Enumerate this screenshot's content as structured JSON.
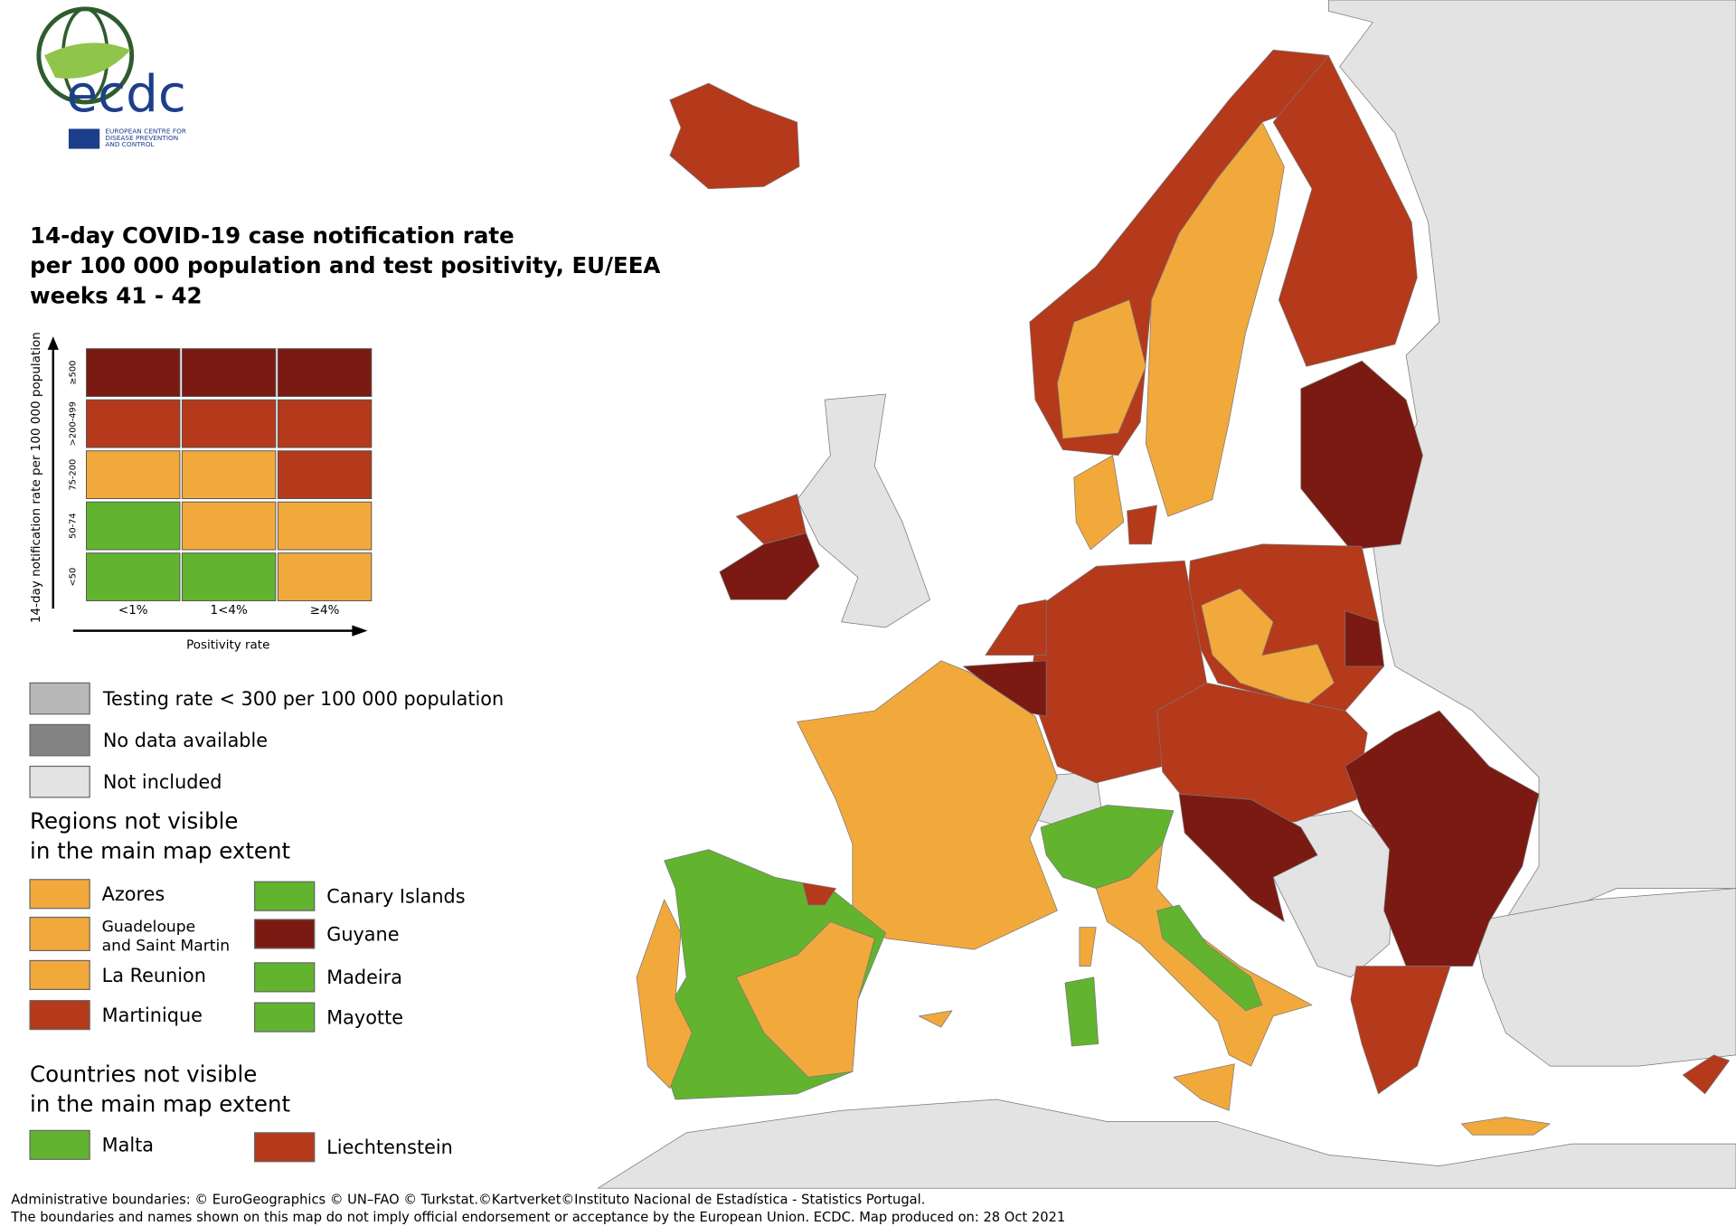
{
  "logo": {
    "name": "ecdc",
    "org": [
      "EUROPEAN CENTRE FOR",
      "DISEASE PREVENTION",
      "AND CONTROL"
    ]
  },
  "title": [
    "14-day COVID-19 case notification rate",
    "per 100 000 population and test positivity, EU/EEA",
    "weeks 41 - 42"
  ],
  "matrix": {
    "y_label": "14-day notification rate per 100 000 population",
    "x_label": "Positivity rate",
    "columns": [
      "<1%",
      "1<4%",
      "≥4%"
    ],
    "rows": [
      {
        "label": "≥500",
        "colors": [
          "#7b1a12",
          "#7b1a12",
          "#7b1a12"
        ]
      },
      {
        "label": ">200-499",
        "colors": [
          "#b5391b",
          "#b5391b",
          "#b5391b"
        ]
      },
      {
        "label": "75-200",
        "colors": [
          "#f2a93b",
          "#f2a93b",
          "#b5391b"
        ]
      },
      {
        "label": "50-74",
        "colors": [
          "#62b42e",
          "#f2a93b",
          "#f2a93b"
        ]
      },
      {
        "label": "<50",
        "colors": [
          "#62b42e",
          "#62b42e",
          "#f2a93b"
        ]
      }
    ]
  },
  "legend": [
    {
      "label": "Testing rate < 300 per 100 000 population",
      "color": "#b8b8b8"
    },
    {
      "label": "No data available",
      "color": "#838383"
    },
    {
      "label": "Not included",
      "color": "#e3e3e3"
    }
  ],
  "regions": {
    "heading": [
      "Regions not visible",
      "in the main map extent"
    ],
    "items": [
      {
        "lines": [
          "Azores"
        ],
        "color": "#f2a93b"
      },
      {
        "lines": [
          "Guadeloupe",
          "and Saint Martin"
        ],
        "color": "#f2a93b"
      },
      {
        "lines": [
          "La Reunion"
        ],
        "color": "#f2a93b"
      },
      {
        "lines": [
          "Martinique"
        ],
        "color": "#b5391b"
      },
      {
        "lines": [
          "Canary Islands"
        ],
        "color": "#62b42e"
      },
      {
        "lines": [
          "Guyane"
        ],
        "color": "#7b1a12"
      },
      {
        "lines": [
          "Madeira"
        ],
        "color": "#62b42e"
      },
      {
        "lines": [
          "Mayotte"
        ],
        "color": "#62b42e"
      }
    ]
  },
  "countries": {
    "heading": [
      "Countries not visible",
      "in the main map extent"
    ],
    "items": [
      {
        "lines": [
          "Malta"
        ],
        "color": "#62b42e"
      },
      {
        "lines": [
          "Liechtenstein"
        ],
        "color": "#b5391b"
      }
    ]
  },
  "footer": [
    "Administrative boundaries: © EuroGeographics © UN–FAO © Turkstat.©Kartverket©Instituto Nacional de Estadística - Statistics Portugal.",
    "The boundaries and names shown on this map do not imply official endorsement or acceptance by the European Union. ECDC. Map produced on: 28 Oct 2021"
  ]
}
